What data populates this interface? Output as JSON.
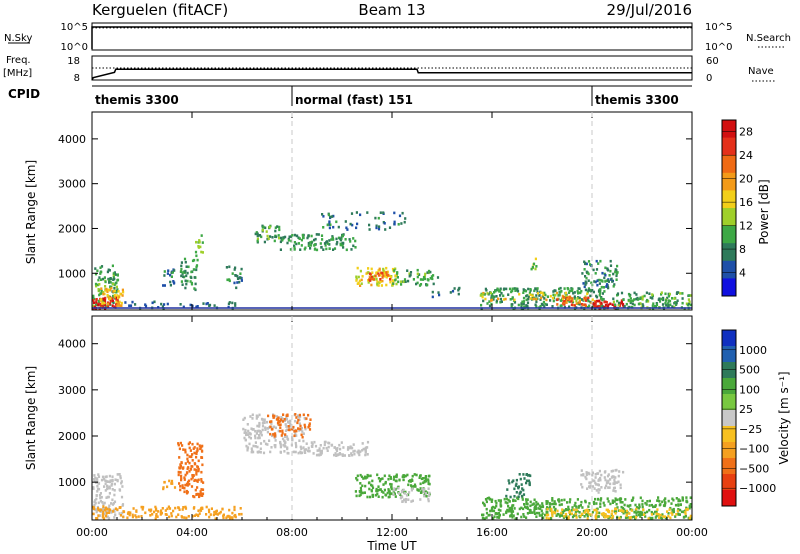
{
  "header": {
    "radar": "Kerguelen (fitACF)",
    "beam": "Beam 13",
    "date": "29/Jul/2016"
  },
  "colors": {
    "power_scale": [
      "#1010e0",
      "#1e4fa8",
      "#2e7a5a",
      "#3da845",
      "#9fcf2a",
      "#f2cf19",
      "#f39a18",
      "#ef6a14",
      "#e4301a",
      "#d10f10"
    ],
    "velocity_scale": [
      "#1030c0",
      "#2060b0",
      "#2e7a5a",
      "#4aa83a",
      "#78c840",
      "#c8c8c8",
      "#f7c020",
      "#f5a020",
      "#f07018",
      "#e84010",
      "#e01010"
    ],
    "ground_scatter": "#c0c0c0",
    "baseline": "#2030a0"
  },
  "chart_data": [
    {
      "type": "line",
      "panel": "nsky-nsearch",
      "left_label": "N.Sky",
      "right_label": "N.Search",
      "left_ticks": [
        "10^5",
        "10^0"
      ],
      "right_ticks": [
        "10^5",
        "10^0"
      ],
      "x": [
        0,
        24
      ],
      "series": [
        {
          "values": [
            0.85,
            0.85
          ],
          "style": "solid"
        },
        {
          "values": [
            0.82,
            0.82
          ],
          "style": "dotted"
        }
      ]
    },
    {
      "type": "line",
      "panel": "freq-nave",
      "left_label": "Freq.\n[MHz]",
      "right_label": "Nave",
      "left_ticks": [
        "18",
        "8"
      ],
      "right_ticks": [
        "60",
        "0"
      ],
      "left_ylim": [
        8,
        18
      ],
      "x_step": [
        0,
        0.05,
        0.9,
        0.95,
        13.0,
        13.05,
        24
      ],
      "freq_values": [
        8,
        9,
        11.2,
        12.5,
        12.5,
        11.0,
        11.0
      ],
      "nave_values": [
        30,
        30,
        30,
        30,
        30,
        30,
        30
      ],
      "nave_ylim": [
        0,
        60
      ]
    },
    {
      "type": "table",
      "panel": "cpid",
      "label": "CPID",
      "segments": [
        {
          "start": 0,
          "end": 8,
          "name": "themis 3300"
        },
        {
          "start": 8,
          "end": 20,
          "name": "normal (fast) 151"
        },
        {
          "start": 20,
          "end": 24,
          "name": "themis 3300"
        }
      ]
    },
    {
      "type": "heatmap",
      "panel": "power",
      "ylabel": "Slant Range [km]",
      "ylim": [
        180,
        4600
      ],
      "yticks": [
        1000,
        2000,
        3000,
        4000
      ],
      "colorbar_label": "Power [dB]",
      "colorbar_ticks": [
        "4",
        "8",
        "12",
        "16",
        "20",
        "24",
        "28"
      ],
      "clim": [
        0,
        30
      ],
      "regions": [
        {
          "t": [
            0.0,
            1.0
          ],
          "r": [
            200,
            1200
          ],
          "v": 10,
          "d": 0.55
        },
        {
          "t": [
            0.0,
            1.0
          ],
          "r": [
            200,
            500
          ],
          "v": 27,
          "d": 0.9
        },
        {
          "t": [
            0.3,
            1.2
          ],
          "r": [
            300,
            700
          ],
          "v": 18,
          "d": 0.6
        },
        {
          "t": [
            1.0,
            6.0
          ],
          "r": [
            200,
            400
          ],
          "v": 6,
          "d": 0.25
        },
        {
          "t": [
            2.8,
            3.4
          ],
          "r": [
            750,
            1150
          ],
          "v": 7,
          "d": 0.4
        },
        {
          "t": [
            3.5,
            4.2
          ],
          "r": [
            650,
            1350
          ],
          "v": 9,
          "d": 0.45
        },
        {
          "t": [
            4.1,
            4.4
          ],
          "r": [
            1400,
            1900
          ],
          "v": 12,
          "d": 0.5
        },
        {
          "t": [
            5.3,
            6.0
          ],
          "r": [
            700,
            1200
          ],
          "v": 8,
          "d": 0.35
        },
        {
          "t": [
            6.5,
            7.5
          ],
          "r": [
            1700,
            2100
          ],
          "v": 10,
          "d": 0.5
        },
        {
          "t": [
            7.5,
            10.5
          ],
          "r": [
            1550,
            1900
          ],
          "v": 9,
          "d": 0.55
        },
        {
          "t": [
            9.0,
            12.5
          ],
          "r": [
            2000,
            2400
          ],
          "v": 7,
          "d": 0.2
        },
        {
          "t": [
            10.5,
            12.2
          ],
          "r": [
            750,
            1150
          ],
          "v": 16,
          "d": 0.6
        },
        {
          "t": [
            11.0,
            11.9
          ],
          "r": [
            850,
            1050
          ],
          "v": 24,
          "d": 0.6
        },
        {
          "t": [
            12.0,
            13.8
          ],
          "r": [
            750,
            1100
          ],
          "v": 10,
          "d": 0.4
        },
        {
          "t": [
            13.5,
            15.0
          ],
          "r": [
            500,
            700
          ],
          "v": 6,
          "d": 0.2
        },
        {
          "t": [
            15.5,
            20.5
          ],
          "r": [
            200,
            700
          ],
          "v": 9,
          "d": 0.55
        },
        {
          "t": [
            15.5,
            20.0
          ],
          "r": [
            400,
            600
          ],
          "v": 17,
          "d": 0.3
        },
        {
          "t": [
            18.5,
            20.5
          ],
          "r": [
            300,
            500
          ],
          "v": 23,
          "d": 0.45
        },
        {
          "t": [
            20.0,
            21.3
          ],
          "r": [
            200,
            420
          ],
          "v": 27,
          "d": 0.75
        },
        {
          "t": [
            19.5,
            21.0
          ],
          "r": [
            700,
            1300
          ],
          "v": 8,
          "d": 0.45
        },
        {
          "t": [
            20.8,
            24.0
          ],
          "r": [
            200,
            600
          ],
          "v": 10,
          "d": 0.6
        },
        {
          "t": [
            17.5,
            17.8
          ],
          "r": [
            1100,
            1400
          ],
          "v": 13,
          "d": 0.5
        }
      ]
    },
    {
      "type": "heatmap",
      "panel": "velocity",
      "ylabel": "Slant Range [km]",
      "ylim": [
        180,
        4600
      ],
      "yticks": [
        1000,
        2000,
        3000,
        4000
      ],
      "xlabel": "Time UT",
      "xlim": [
        0,
        24
      ],
      "xticks": [
        "00:00",
        "04:00",
        "08:00",
        "12:00",
        "16:00",
        "20:00",
        "00:00"
      ],
      "colorbar_label": "Velocity [m s⁻¹]",
      "colorbar_ticks": [
        "1000",
        "500",
        "100",
        "25",
        "−25",
        "−100",
        "−500",
        "−1000"
      ],
      "regions": [
        {
          "t": [
            0.0,
            1.2
          ],
          "r": [
            200,
            1200
          ],
          "v": "gs",
          "d": 0.55
        },
        {
          "t": [
            0.0,
            6.0
          ],
          "r": [
            200,
            500
          ],
          "v": -60,
          "d": 0.5
        },
        {
          "t": [
            3.4,
            4.4
          ],
          "r": [
            700,
            1900
          ],
          "v": -300,
          "d": 0.55
        },
        {
          "t": [
            2.8,
            3.3
          ],
          "r": [
            800,
            1100
          ],
          "v": -100,
          "d": 0.35
        },
        {
          "t": [
            6.0,
            8.5
          ],
          "r": [
            1650,
            2500
          ],
          "v": "gs",
          "d": 0.45
        },
        {
          "t": [
            7.0,
            8.7
          ],
          "r": [
            2000,
            2500
          ],
          "v": -400,
          "d": 0.4
        },
        {
          "t": [
            8.5,
            11.0
          ],
          "r": [
            1600,
            1900
          ],
          "v": "gs",
          "d": 0.6
        },
        {
          "t": [
            10.5,
            13.5
          ],
          "r": [
            700,
            1200
          ],
          "v": 80,
          "d": 0.55
        },
        {
          "t": [
            12.0,
            13.5
          ],
          "r": [
            600,
            900
          ],
          "v": "gs",
          "d": 0.4
        },
        {
          "t": [
            15.5,
            24.0
          ],
          "r": [
            200,
            700
          ],
          "v": 90,
          "d": 0.55
        },
        {
          "t": [
            18.0,
            24.0
          ],
          "r": [
            200,
            450
          ],
          "v": -50,
          "d": 0.4
        },
        {
          "t": [
            19.5,
            21.2
          ],
          "r": [
            800,
            1300
          ],
          "v": "gs",
          "d": 0.5
        },
        {
          "t": [
            16.5,
            17.5
          ],
          "r": [
            700,
            1200
          ],
          "v": 300,
          "d": 0.4
        }
      ]
    }
  ]
}
